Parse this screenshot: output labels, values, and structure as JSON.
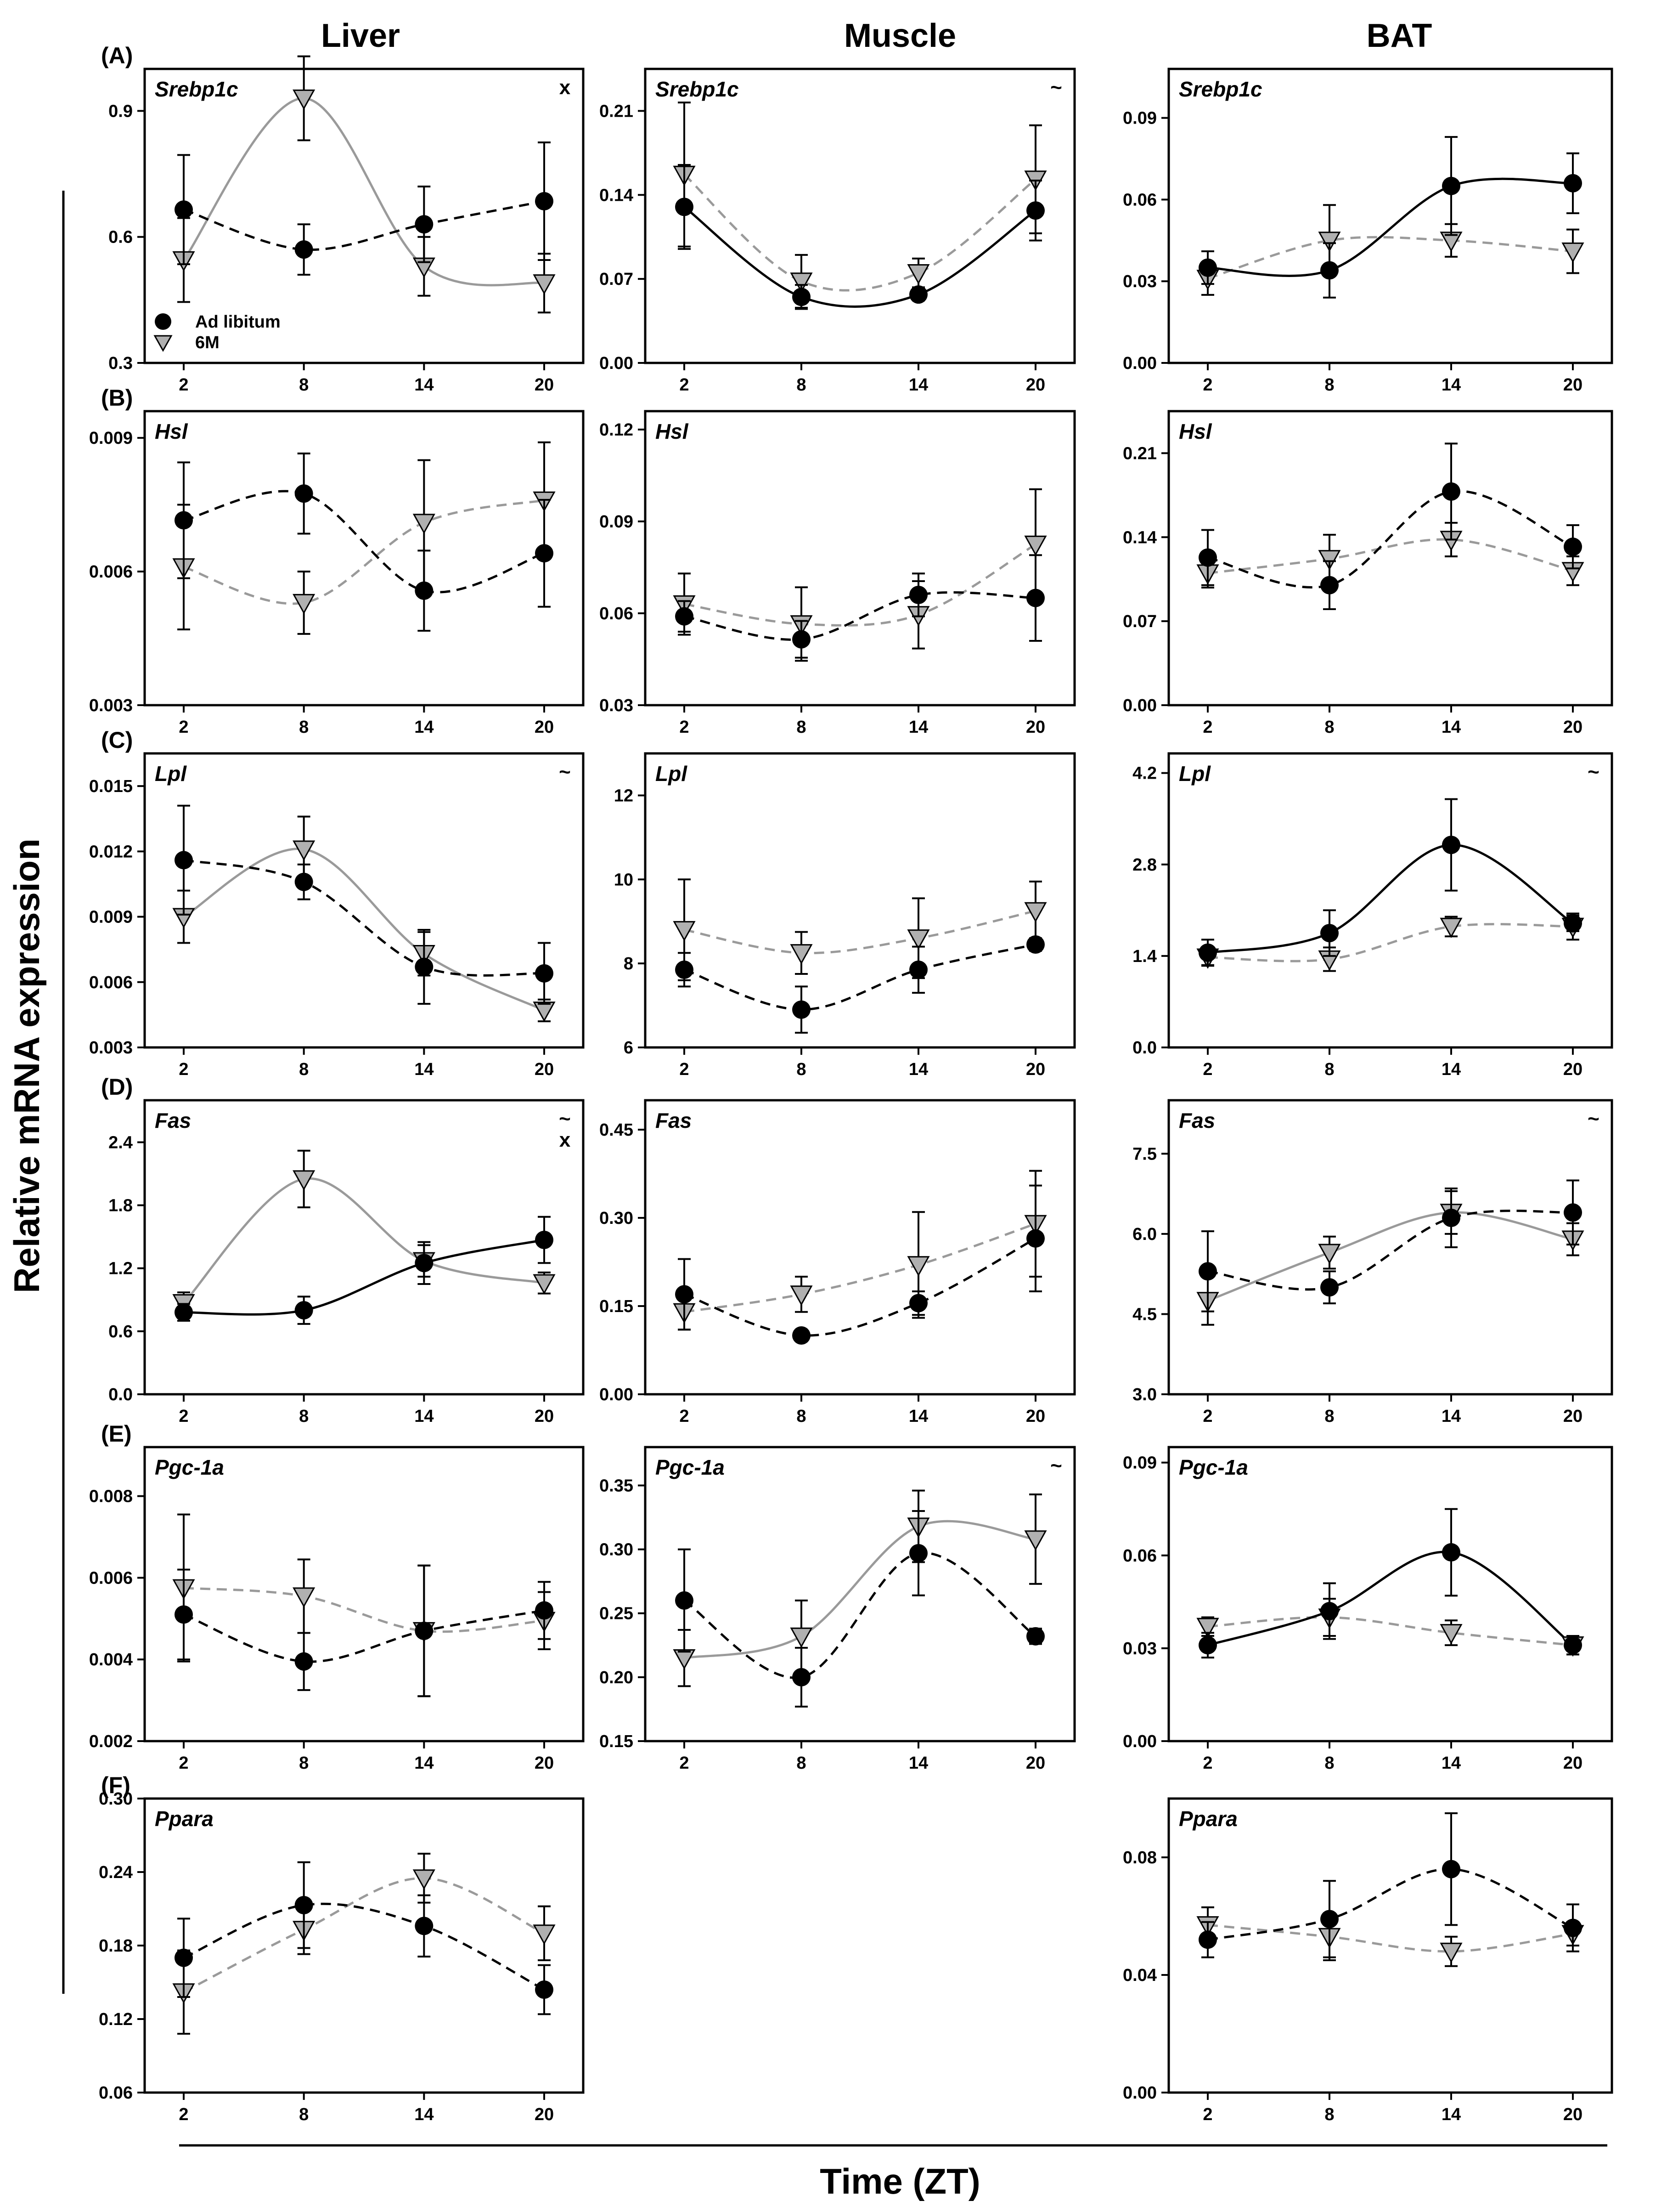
{
  "columns": [
    "Liver",
    "Muscle",
    "BAT"
  ],
  "y_axis_title": "Relative mRNA expression",
  "x_axis_title": "Time (ZT)",
  "legend": {
    "ad_libitum": "Ad libitum",
    "six_m": "6M"
  },
  "colors": {
    "ad_libitum": "#000000",
    "six_m_marker": "#b0b0b0",
    "six_m_line": "#9a9a9a"
  },
  "chart_data": [
    {
      "type": "scatter",
      "row": "(A)",
      "col": 0,
      "gene": "Srebp1c",
      "mark": "x",
      "ylim": [
        0.3,
        1.0
      ],
      "yticks": [
        0.3,
        0.6,
        0.9
      ],
      "ytick_labels": [
        "0.3",
        "0.6",
        "0.9"
      ],
      "x": [
        2,
        8,
        14,
        20
      ],
      "xticks": [
        "2",
        "8",
        "14",
        "20"
      ],
      "al": {
        "y": [
          0.665,
          0.57,
          0.63,
          0.685
        ],
        "err": [
          0.13,
          0.06,
          0.09,
          0.14
        ],
        "fit": "dashed"
      },
      "sm": {
        "y": [
          0.545,
          0.93,
          0.53,
          0.49
        ],
        "err": [
          0.1,
          0.1,
          0.07,
          0.07
        ],
        "fit": "solid"
      },
      "legend_shown": true
    },
    {
      "type": "scatter",
      "row": "",
      "col": 1,
      "gene": "Srebp1c",
      "mark": "~",
      "ylim": [
        0.0,
        0.245
      ],
      "yticks": [
        0.0,
        0.07,
        0.14,
        0.21
      ],
      "ytick_labels": [
        "0.00",
        "0.07",
        "0.14",
        "0.21"
      ],
      "x": [
        2,
        8,
        14,
        20
      ],
      "xticks": [
        "2",
        "8",
        "14",
        "20"
      ],
      "al": {
        "y": [
          0.13,
          0.055,
          0.057,
          0.127
        ],
        "err": [
          0.035,
          0.01,
          0.005,
          0.025
        ],
        "fit": "solid"
      },
      "sm": {
        "y": [
          0.157,
          0.068,
          0.075,
          0.153
        ],
        "err": [
          0.06,
          0.022,
          0.012,
          0.045
        ],
        "fit": "dashed"
      }
    },
    {
      "type": "scatter",
      "row": "",
      "col": 2,
      "gene": "Srebp1c",
      "mark": "",
      "ylim": [
        0.0,
        0.108
      ],
      "yticks": [
        0.0,
        0.03,
        0.06,
        0.09
      ],
      "ytick_labels": [
        "0.00",
        "0.03",
        "0.06",
        "0.09"
      ],
      "x": [
        2,
        8,
        14,
        20
      ],
      "xticks": [
        "2",
        "8",
        "14",
        "20"
      ],
      "al": {
        "y": [
          0.035,
          0.034,
          0.065,
          0.066
        ],
        "err": [
          0.006,
          0.01,
          0.018,
          0.011
        ],
        "fit": "solid"
      },
      "sm": {
        "y": [
          0.031,
          0.045,
          0.045,
          0.041
        ],
        "err": [
          0.006,
          0.013,
          0.006,
          0.008
        ],
        "fit": "dashed"
      }
    },
    {
      "type": "scatter",
      "row": "(B)",
      "col": 0,
      "gene": "Hsl",
      "mark": "",
      "ylim": [
        0.003,
        0.0096
      ],
      "yticks": [
        0.003,
        0.006,
        0.009
      ],
      "ytick_labels": [
        "0.003",
        "0.006",
        "0.009"
      ],
      "x": [
        2,
        8,
        14,
        20
      ],
      "xticks": [
        "2",
        "8",
        "14",
        "20"
      ],
      "al": {
        "y": [
          0.00715,
          0.00775,
          0.00557,
          0.00641
        ],
        "err": [
          0.0013,
          0.0009,
          0.0009,
          0.0012
        ],
        "fit": "dashed"
      },
      "sm": {
        "y": [
          0.0061,
          0.0053,
          0.0071,
          0.0076
        ],
        "err": [
          0.0014,
          0.0007,
          0.0014,
          0.0013
        ],
        "fit": "dashed"
      }
    },
    {
      "type": "scatter",
      "row": "",
      "col": 1,
      "gene": "Hsl",
      "mark": "",
      "ylim": [
        0.03,
        0.126
      ],
      "yticks": [
        0.03,
        0.06,
        0.09,
        0.12
      ],
      "ytick_labels": [
        "0.03",
        "0.06",
        "0.09",
        "0.12"
      ],
      "x": [
        2,
        8,
        14,
        20
      ],
      "xticks": [
        "2",
        "8",
        "14",
        "20"
      ],
      "al": {
        "y": [
          0.059,
          0.0515,
          0.066,
          0.065
        ],
        "err": [
          0.005,
          0.006,
          0.007,
          0.014
        ],
        "fit": "dashed"
      },
      "sm": {
        "y": [
          0.063,
          0.0565,
          0.0595,
          0.0825
        ],
        "err": [
          0.01,
          0.012,
          0.011,
          0.018
        ],
        "fit": "dashed"
      }
    },
    {
      "type": "scatter",
      "row": "",
      "col": 2,
      "gene": "Hsl",
      "mark": "",
      "ylim": [
        0.0,
        0.245
      ],
      "yticks": [
        0.0,
        0.07,
        0.14,
        0.21
      ],
      "ytick_labels": [
        "0.00",
        "0.07",
        "0.14",
        "0.21"
      ],
      "x": [
        2,
        8,
        14,
        20
      ],
      "xticks": [
        "2",
        "8",
        "14",
        "20"
      ],
      "al": {
        "y": [
          0.123,
          0.1,
          0.178,
          0.132
        ],
        "err": [
          0.023,
          0.02,
          0.04,
          0.018
        ],
        "fit": "dashed"
      },
      "sm": {
        "y": [
          0.11,
          0.122,
          0.138,
          0.112
        ],
        "err": [
          0.012,
          0.02,
          0.014,
          0.012
        ],
        "fit": "dashed"
      }
    },
    {
      "type": "scatter",
      "row": "(C)",
      "col": 0,
      "gene": "Lpl",
      "mark": "~",
      "ylim": [
        0.003,
        0.0165
      ],
      "yticks": [
        0.003,
        0.006,
        0.009,
        0.012,
        0.015
      ],
      "ytick_labels": [
        "0.003",
        "0.006",
        "0.009",
        "0.012",
        "0.015"
      ],
      "x": [
        2,
        8,
        14,
        20
      ],
      "xticks": [
        "2",
        "8",
        "14",
        "20"
      ],
      "al": {
        "y": [
          0.0116,
          0.0106,
          0.0067,
          0.0064
        ],
        "err": [
          0.0025,
          0.0008,
          0.0017,
          0.0014
        ],
        "fit": "dashed"
      },
      "sm": {
        "y": [
          0.009,
          0.0121,
          0.0073,
          0.0047
        ],
        "err": [
          0.0012,
          0.0015,
          0.001,
          0.0005
        ],
        "fit": "solid"
      }
    },
    {
      "type": "scatter",
      "row": "",
      "col": 1,
      "gene": "Lpl",
      "mark": "",
      "ylim": [
        6,
        13
      ],
      "yticks": [
        6,
        8,
        10,
        12
      ],
      "ytick_labels": [
        "6",
        "8",
        "10",
        "12"
      ],
      "x": [
        2,
        8,
        14,
        20
      ],
      "xticks": [
        "2",
        "8",
        "14",
        "20"
      ],
      "al": {
        "y": [
          7.85,
          6.9,
          7.85,
          8.45
        ],
        "err": [
          0.4,
          0.55,
          0.55,
          0.15
        ],
        "fit": "dashed"
      },
      "sm": {
        "y": [
          8.8,
          8.25,
          8.6,
          9.25
        ],
        "err": [
          1.2,
          0.5,
          0.95,
          0.7
        ],
        "fit": "dashed"
      }
    },
    {
      "type": "scatter",
      "row": "",
      "col": 2,
      "gene": "Lpl",
      "mark": "~",
      "ylim": [
        0.0,
        4.5
      ],
      "yticks": [
        0.0,
        1.4,
        2.8,
        4.2
      ],
      "ytick_labels": [
        "0.0",
        "1.4",
        "2.8",
        "4.2"
      ],
      "x": [
        2,
        8,
        14,
        20
      ],
      "xticks": [
        "2",
        "8",
        "14",
        "20"
      ],
      "al": {
        "y": [
          1.45,
          1.75,
          3.1,
          1.9
        ],
        "err": [
          0.2,
          0.35,
          0.7,
          0.12
        ],
        "fit": "solid"
      },
      "sm": {
        "y": [
          1.38,
          1.35,
          1.85,
          1.85
        ],
        "err": [
          0.12,
          0.18,
          0.15,
          0.2
        ],
        "fit": "dashed"
      }
    },
    {
      "type": "scatter",
      "row": "(D)",
      "col": 0,
      "gene": "Fas",
      "mark": "~\nx",
      "ylim": [
        0.0,
        2.8
      ],
      "yticks": [
        0.0,
        0.6,
        1.2,
        1.8,
        2.4
      ],
      "ytick_labels": [
        "0.0",
        "0.6",
        "1.2",
        "1.8",
        "2.4"
      ],
      "x": [
        2,
        8,
        14,
        20
      ],
      "xticks": [
        "2",
        "8",
        "14",
        "20"
      ],
      "al": {
        "y": [
          0.78,
          0.8,
          1.25,
          1.47
        ],
        "err": [
          0.08,
          0.13,
          0.2,
          0.22
        ],
        "fit": "solid"
      },
      "sm": {
        "y": [
          0.87,
          2.05,
          1.27,
          1.06
        ],
        "err": [
          0.1,
          0.27,
          0.15,
          0.1
        ],
        "fit": "solid"
      }
    },
    {
      "type": "scatter",
      "row": "",
      "col": 1,
      "gene": "Fas",
      "mark": "",
      "ylim": [
        0.0,
        0.5
      ],
      "yticks": [
        0.0,
        0.15,
        0.3,
        0.45
      ],
      "ytick_labels": [
        "0.00",
        "0.15",
        "0.30",
        "0.45"
      ],
      "x": [
        2,
        8,
        14,
        20
      ],
      "xticks": [
        "2",
        "8",
        "14",
        "20"
      ],
      "al": {
        "y": [
          0.17,
          0.1,
          0.155,
          0.265
        ],
        "err": [
          0.06,
          0.01,
          0.02,
          0.09
        ],
        "fit": "dashed"
      },
      "sm": {
        "y": [
          0.14,
          0.17,
          0.22,
          0.29
        ],
        "err": [
          0.03,
          0.03,
          0.09,
          0.09
        ],
        "fit": "dashed"
      }
    },
    {
      "type": "scatter",
      "row": "",
      "col": 2,
      "gene": "Fas",
      "mark": "~",
      "ylim": [
        3.0,
        8.5
      ],
      "yticks": [
        3.0,
        4.5,
        6.0,
        7.5
      ],
      "ytick_labels": [
        "3.0",
        "4.5",
        "6.0",
        "7.5"
      ],
      "x": [
        2,
        8,
        14,
        20
      ],
      "xticks": [
        "2",
        "8",
        "14",
        "20"
      ],
      "al": {
        "y": [
          5.3,
          5.0,
          6.3,
          6.4
        ],
        "err": [
          0.75,
          0.3,
          0.55,
          0.6
        ],
        "fit": "dashed"
      },
      "sm": {
        "y": [
          4.75,
          5.65,
          6.4,
          5.9
        ],
        "err": [
          0.45,
          0.3,
          0.4,
          0.3
        ],
        "fit": "solid"
      }
    },
    {
      "type": "scatter",
      "row": "(E)",
      "col": 0,
      "gene": "Pgc-1a",
      "mark": "",
      "ylim": [
        0.002,
        0.0092
      ],
      "yticks": [
        0.002,
        0.004,
        0.006,
        0.008
      ],
      "ytick_labels": [
        "0.002",
        "0.004",
        "0.006",
        "0.008"
      ],
      "x": [
        2,
        8,
        14,
        20
      ],
      "xticks": [
        "2",
        "8",
        "14",
        "20"
      ],
      "al": {
        "y": [
          0.0051,
          0.00395,
          0.0047,
          0.0052
        ],
        "err": [
          0.0011,
          0.0007,
          0.0016,
          0.0007
        ],
        "fit": "dashed"
      },
      "sm": {
        "y": [
          0.00575,
          0.00555,
          0.0047,
          0.00495
        ],
        "err": [
          0.0018,
          0.0009,
          0.0016,
          0.0007
        ],
        "fit": "dashed"
      }
    },
    {
      "type": "scatter",
      "row": "",
      "col": 1,
      "gene": "Pgc-1a",
      "mark": "~",
      "ylim": [
        0.15,
        0.38
      ],
      "yticks": [
        0.15,
        0.2,
        0.25,
        0.3,
        0.35
      ],
      "ytick_labels": [
        "0.15",
        "0.20",
        "0.25",
        "0.30",
        "0.35"
      ],
      "x": [
        2,
        8,
        14,
        20
      ],
      "xticks": [
        "2",
        "8",
        "14",
        "20"
      ],
      "al": {
        "y": [
          0.26,
          0.2,
          0.297,
          0.232
        ],
        "err": [
          0.04,
          0.023,
          0.033,
          0.006
        ],
        "fit": "dashed"
      },
      "sm": {
        "y": [
          0.215,
          0.232,
          0.318,
          0.308
        ],
        "err": [
          0.022,
          0.028,
          0.028,
          0.035
        ],
        "fit": "solid"
      }
    },
    {
      "type": "scatter",
      "row": "",
      "col": 2,
      "gene": "Pgc-1a",
      "mark": "",
      "ylim": [
        0.0,
        0.095
      ],
      "yticks": [
        0.0,
        0.03,
        0.06,
        0.09
      ],
      "ytick_labels": [
        "0.00",
        "0.03",
        "0.06",
        "0.09"
      ],
      "x": [
        2,
        8,
        14,
        20
      ],
      "xticks": [
        "2",
        "8",
        "14",
        "20"
      ],
      "al": {
        "y": [
          0.031,
          0.042,
          0.061,
          0.031
        ],
        "err": [
          0.004,
          0.009,
          0.014,
          0.003
        ],
        "fit": "solid"
      },
      "sm": {
        "y": [
          0.037,
          0.04,
          0.035,
          0.031
        ],
        "err": [
          0.003,
          0.006,
          0.004,
          0.003
        ],
        "fit": "dashed"
      }
    },
    {
      "type": "scatter",
      "row": "(F)",
      "col": 0,
      "gene": "Ppara",
      "mark": "",
      "ylim": [
        0.06,
        0.3
      ],
      "yticks": [
        0.06,
        0.12,
        0.18,
        0.24,
        0.3
      ],
      "ytick_labels": [
        "0.06",
        "0.12",
        "0.18",
        "0.24",
        "0.30"
      ],
      "x": [
        2,
        8,
        14,
        20
      ],
      "xticks": [
        "2",
        "8",
        "14",
        "20"
      ],
      "al": {
        "y": [
          0.17,
          0.213,
          0.196,
          0.144
        ],
        "err": [
          0.032,
          0.035,
          0.025,
          0.02
        ],
        "fit": "dashed"
      },
      "sm": {
        "y": [
          0.142,
          0.193,
          0.235,
          0.19
        ],
        "err": [
          0.034,
          0.02,
          0.02,
          0.022
        ],
        "fit": "dashed"
      }
    },
    {
      "type": "scatter",
      "row": "",
      "col": 2,
      "gene": "Ppara",
      "mark": "",
      "ylim": [
        0.0,
        0.1
      ],
      "yticks": [
        0.0,
        0.04,
        0.08
      ],
      "ytick_labels": [
        "0.00",
        "0.04",
        "0.08"
      ],
      "x": [
        2,
        8,
        14,
        20
      ],
      "xticks": [
        "2",
        "8",
        "14",
        "20"
      ],
      "al": {
        "y": [
          0.052,
          0.059,
          0.076,
          0.056
        ],
        "err": [
          0.006,
          0.013,
          0.019,
          0.008
        ],
        "fit": "dashed"
      },
      "sm": {
        "y": [
          0.057,
          0.053,
          0.048,
          0.054
        ],
        "err": [
          0.006,
          0.008,
          0.005,
          0.004
        ],
        "fit": "dashed"
      }
    }
  ]
}
